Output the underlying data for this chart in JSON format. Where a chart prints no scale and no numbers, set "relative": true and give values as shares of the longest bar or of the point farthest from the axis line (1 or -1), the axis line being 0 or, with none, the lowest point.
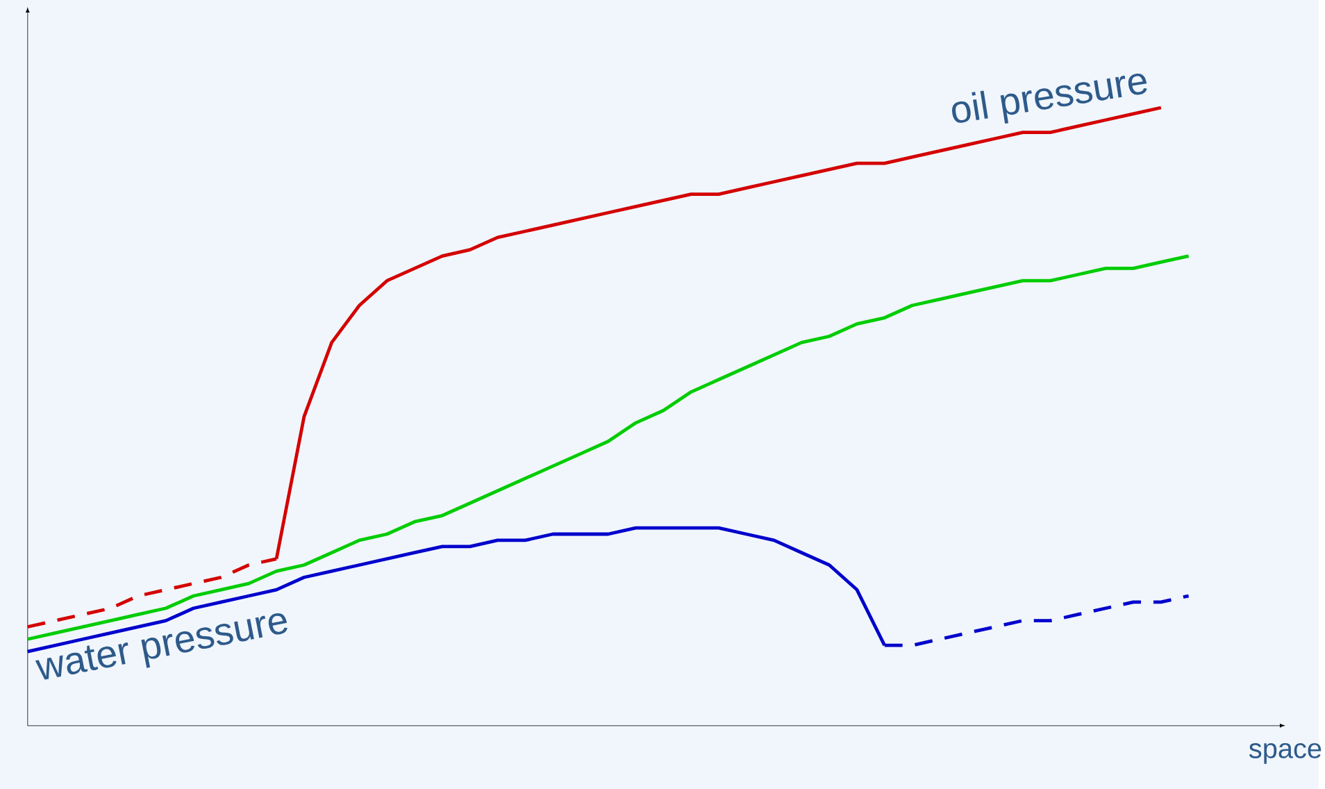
{
  "chart_data": {
    "type": "line",
    "relative": true,
    "xlabel": "space",
    "categories": [
      null,
      null,
      null,
      null,
      null,
      null,
      null,
      null,
      null,
      null,
      null,
      null,
      null,
      null,
      null,
      null,
      null,
      null,
      null,
      null,
      null,
      null,
      null,
      null,
      null,
      null,
      null,
      null,
      null,
      null,
      null,
      null,
      null,
      null,
      null,
      null,
      null,
      null,
      null,
      null,
      null,
      null,
      null
    ],
    "series": [
      {
        "color": "#d40000",
        "line_style": "dashed",
        "values": [
          0.16,
          0.17,
          0.18,
          0.19,
          0.21,
          0.22,
          0.23,
          0.24,
          0.26,
          0.27,
          null,
          null,
          null,
          null,
          null,
          null,
          null,
          null,
          null,
          null,
          null,
          null,
          null,
          null,
          null,
          null,
          null,
          null,
          null,
          null,
          null,
          null,
          null,
          null,
          null,
          null,
          null,
          null,
          null,
          null,
          null,
          null,
          null
        ]
      },
      {
        "name": "oil pressure",
        "color": "#d40000",
        "line_style": "solid",
        "values": [
          null,
          null,
          null,
          null,
          null,
          null,
          null,
          null,
          null,
          0.27,
          0.5,
          0.62,
          0.68,
          0.72,
          0.74,
          0.76,
          0.77,
          0.79,
          0.8,
          0.81,
          0.82,
          0.83,
          0.84,
          0.85,
          0.86,
          0.86,
          0.87,
          0.88,
          0.89,
          0.9,
          0.91,
          0.91,
          0.92,
          0.93,
          0.94,
          0.95,
          0.96,
          0.96,
          0.97,
          0.98,
          0.99,
          1.0,
          null
        ]
      },
      {
        "color": "#00cc00",
        "line_style": "solid",
        "values": [
          0.14,
          0.15,
          0.16,
          0.17,
          0.18,
          0.19,
          0.21,
          0.22,
          0.23,
          0.25,
          0.26,
          0.28,
          0.3,
          0.31,
          0.33,
          0.34,
          0.36,
          0.38,
          0.4,
          0.42,
          0.44,
          0.46,
          0.49,
          0.51,
          0.54,
          0.56,
          0.58,
          0.6,
          0.62,
          0.63,
          0.65,
          0.66,
          0.68,
          0.69,
          0.7,
          0.71,
          0.72,
          0.72,
          0.73,
          0.74,
          0.74,
          0.75,
          0.76
        ]
      },
      {
        "name": "water pressure",
        "color": "#0000cc",
        "line_style": "solid",
        "values": [
          0.12,
          0.13,
          0.14,
          0.15,
          0.16,
          0.17,
          0.19,
          0.2,
          0.21,
          0.22,
          0.24,
          0.25,
          0.26,
          0.27,
          0.28,
          0.29,
          0.29,
          0.3,
          0.3,
          0.31,
          0.31,
          0.31,
          0.32,
          0.32,
          0.32,
          0.32,
          0.31,
          0.3,
          0.28,
          0.26,
          0.22,
          0.13,
          null,
          null,
          null,
          null,
          null,
          null,
          null,
          null,
          null,
          null,
          null
        ]
      },
      {
        "color": "#0000cc",
        "line_style": "dashed",
        "values": [
          null,
          null,
          null,
          null,
          null,
          null,
          null,
          null,
          null,
          null,
          null,
          null,
          null,
          null,
          null,
          null,
          null,
          null,
          null,
          null,
          null,
          null,
          null,
          null,
          null,
          null,
          null,
          null,
          null,
          null,
          null,
          0.13,
          0.13,
          0.14,
          0.15,
          0.16,
          0.17,
          0.17,
          0.18,
          0.19,
          0.2,
          0.2,
          0.21
        ]
      }
    ]
  }
}
